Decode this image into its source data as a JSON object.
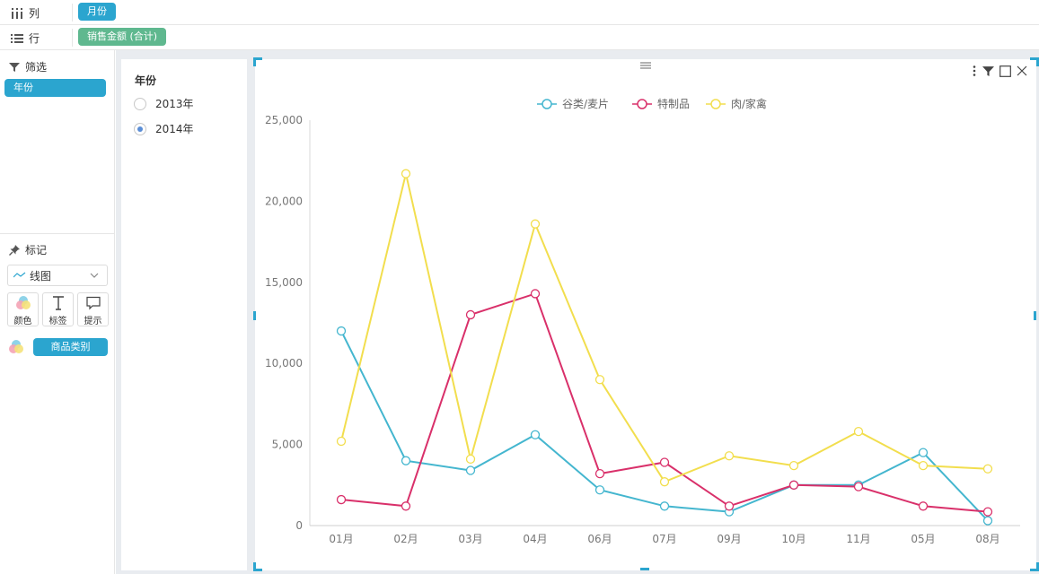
{
  "shelves": {
    "columns": {
      "label": "列",
      "pill": "月份"
    },
    "rows": {
      "label": "行",
      "pill": "销售金额 (合计)"
    }
  },
  "left_panel": {
    "filter_title": "筛选",
    "filter_pill": "年份",
    "marks_title": "标记",
    "mark_type": "线图",
    "mark_buttons": {
      "color": "颜色",
      "label": "标签",
      "tooltip": "提示"
    },
    "color_pill": "商品类别"
  },
  "filter_card": {
    "title": "年份",
    "options": [
      "2013年",
      "2014年"
    ],
    "selected": "2014年"
  },
  "colors": {
    "accent": "#2ba5cf",
    "green_pill": "#5fb88f",
    "series_1": "#44b6cf",
    "series_2": "#d9306a",
    "series_3": "#f2de4e"
  },
  "chart_data": {
    "type": "line",
    "categories": [
      "01月",
      "02月",
      "03月",
      "04月",
      "06月",
      "07月",
      "09月",
      "10月",
      "11月",
      "05月",
      "08月"
    ],
    "series": [
      {
        "name": "谷类/麦片",
        "color": "#44b6cf",
        "values": [
          12000,
          4000,
          3400,
          5600,
          2200,
          1200,
          850,
          2500,
          2500,
          4500,
          300
        ]
      },
      {
        "name": "特制品",
        "color": "#d9306a",
        "values": [
          1600,
          1200,
          13000,
          14300,
          3200,
          3900,
          1200,
          2500,
          2400,
          1200,
          850
        ]
      },
      {
        "name": "肉/家禽",
        "color": "#f2de4e",
        "values": [
          5200,
          21700,
          4100,
          18600,
          9000,
          2700,
          4300,
          3700,
          5800,
          3700,
          3500
        ]
      }
    ],
    "ylim": [
      0,
      25000
    ],
    "yticks": [
      "0",
      "5,000",
      "10,000",
      "15,000",
      "20,000",
      "25,000"
    ],
    "ytick_values": [
      0,
      5000,
      10000,
      15000,
      20000,
      25000
    ],
    "legend_position": "top-center",
    "grid": false
  }
}
